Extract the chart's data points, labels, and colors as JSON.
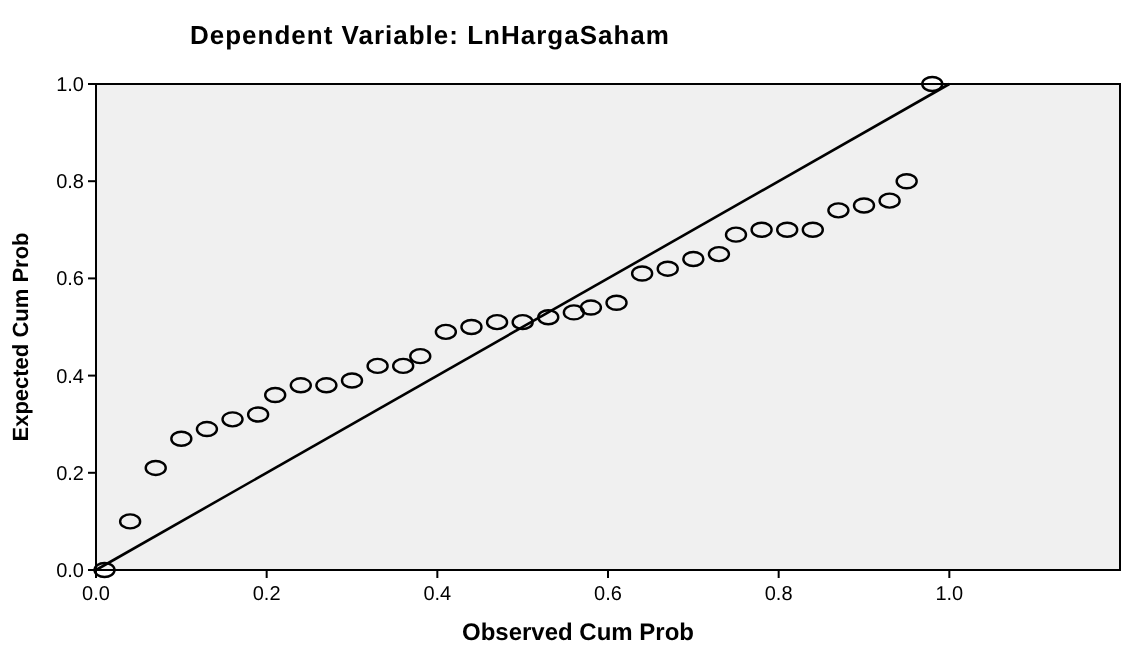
{
  "chart_data": {
    "type": "scatter",
    "title": "Dependent Variable: LnHargaSaham",
    "xlabel": "Observed Cum Prob",
    "ylabel": "Expected Cum Prob",
    "xlim": [
      0,
      1.2
    ],
    "ylim": [
      0,
      1.0
    ],
    "xticks": [
      {
        "value": 0,
        "label": "0.0"
      },
      {
        "value": 0.2,
        "label": "0.2"
      },
      {
        "value": 0.4,
        "label": "0.4"
      },
      {
        "value": 0.6,
        "label": "0.6"
      },
      {
        "value": 0.8,
        "label": "0.8"
      },
      {
        "value": 1,
        "label": "1.0"
      }
    ],
    "yticks": [
      {
        "value": 0,
        "label": "0.0"
      },
      {
        "value": 0.2,
        "label": "0.2"
      },
      {
        "value": 0.4,
        "label": "0.4"
      },
      {
        "value": 0.6,
        "label": "0.6"
      },
      {
        "value": 0.8,
        "label": "0.8"
      },
      {
        "value": 1,
        "label": "1.0"
      }
    ],
    "grid": false,
    "series": [
      {
        "marker": "circle",
        "color": "#000000",
        "x": [
          0.01,
          0.04,
          0.07,
          0.1,
          0.13,
          0.16,
          0.19,
          0.21,
          0.24,
          0.27,
          0.3,
          0.33,
          0.36,
          0.38,
          0.41,
          0.44,
          0.47,
          0.5,
          0.53,
          0.56,
          0.58,
          0.61,
          0.64,
          0.67,
          0.7,
          0.73,
          0.75,
          0.78,
          0.81,
          0.84,
          0.87,
          0.9,
          0.93,
          0.95,
          0.98
        ],
        "values": [
          0.0,
          0.1,
          0.21,
          0.27,
          0.29,
          0.31,
          0.32,
          0.36,
          0.38,
          0.38,
          0.39,
          0.42,
          0.42,
          0.44,
          0.49,
          0.5,
          0.51,
          0.51,
          0.52,
          0.53,
          0.54,
          0.55,
          0.61,
          0.62,
          0.64,
          0.65,
          0.69,
          0.7,
          0.7,
          0.7,
          0.74,
          0.75,
          0.76,
          0.8,
          1.0
        ]
      },
      {
        "type": "line",
        "marker": "none",
        "line_style": "solid",
        "color": "#000000",
        "x": [
          0,
          1
        ],
        "values": [
          0,
          1
        ]
      }
    ]
  }
}
